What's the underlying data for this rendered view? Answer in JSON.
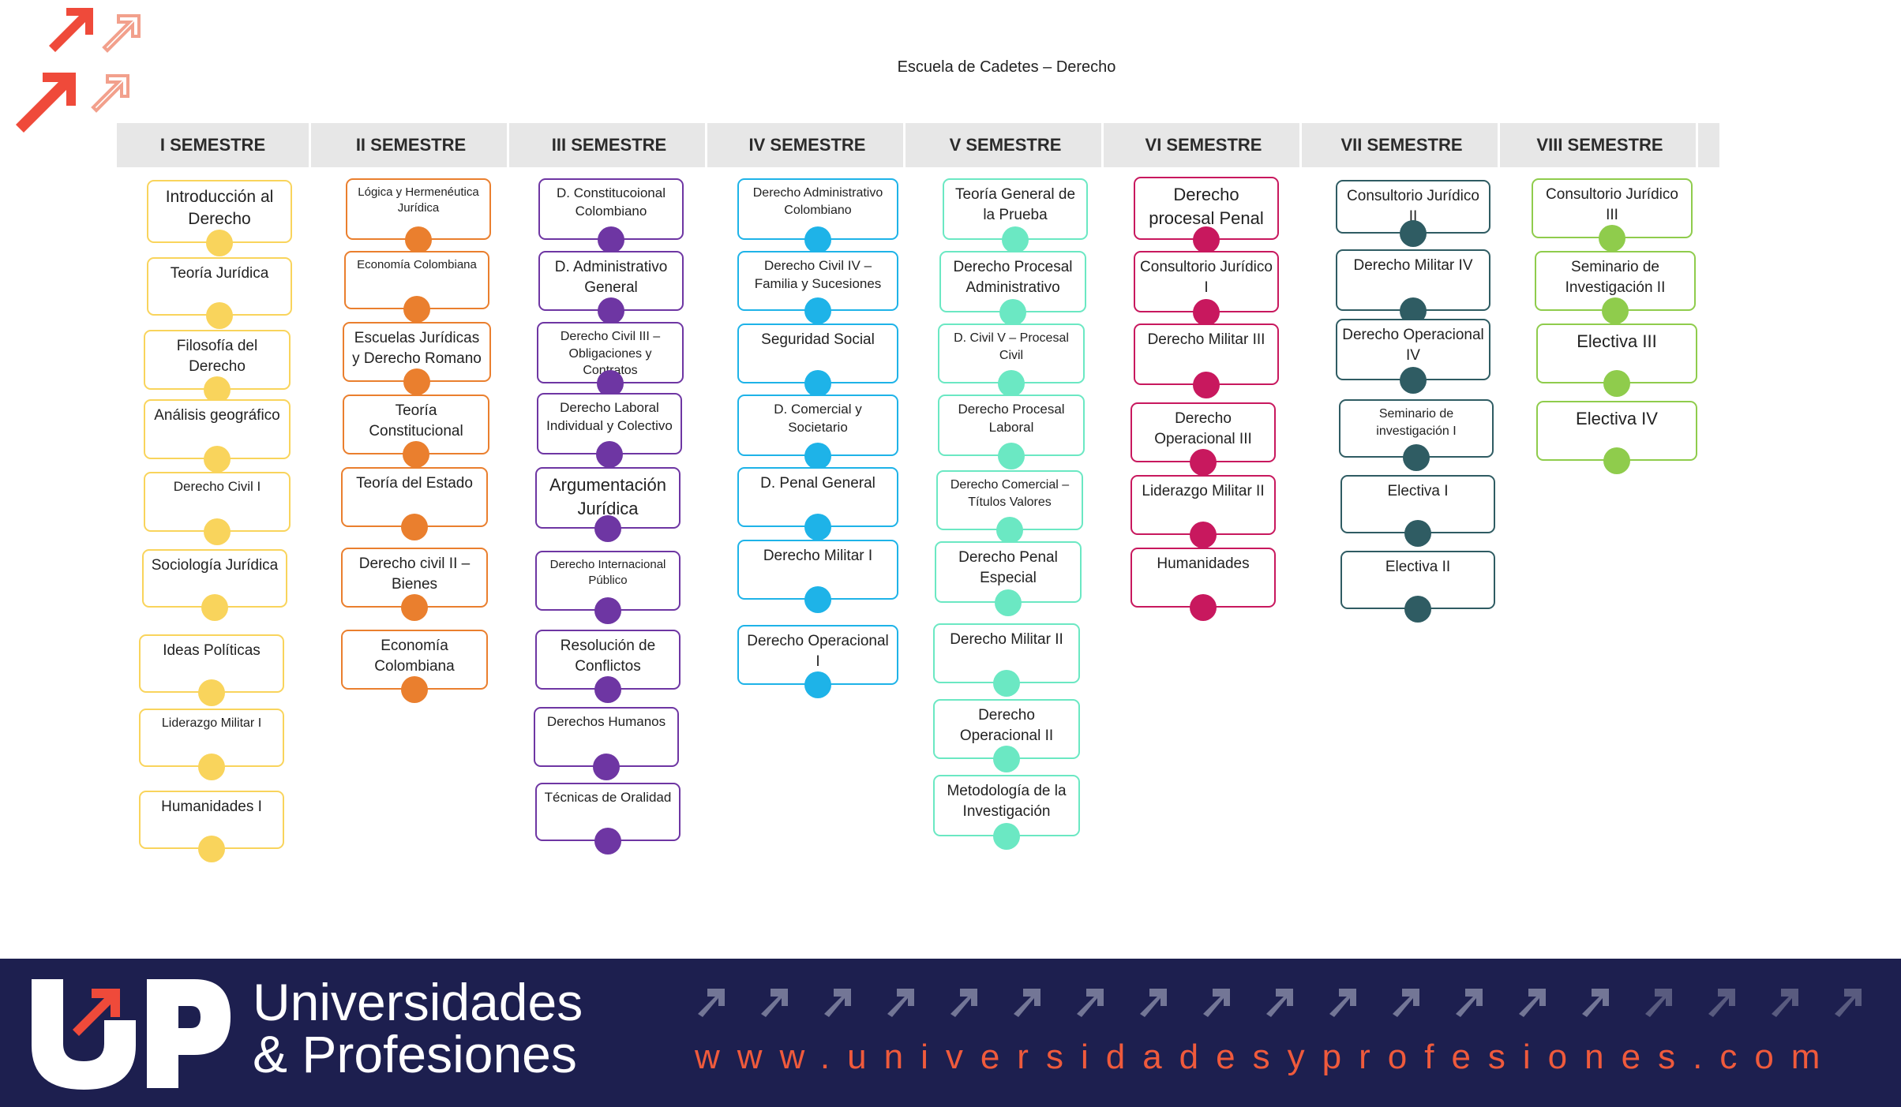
{
  "title": "Escuela de Cadetes – Derecho",
  "colors": {
    "s1": "#f9d45c",
    "s2": "#ea7f2e",
    "s3": "#6e36a3",
    "s4": "#1eb3e8",
    "s5": "#6be8c3",
    "s6": "#c8185e",
    "s7": "#2f5c63",
    "s8": "#8fcc4c",
    "footer_bg": "#1d1f4f",
    "accent": "#ef5a3c"
  },
  "semesters": [
    {
      "label": "I SEMESTRE",
      "color": "#f9d45c",
      "courses": [
        "Introducción al Derecho",
        "Teoría Jurídica",
        "Filosofía del Derecho",
        "Análisis geográfico",
        "Derecho Civil I",
        "Sociología Jurídica",
        "Ideas Políticas",
        "Liderazgo Militar I",
        "Humanidades I"
      ]
    },
    {
      "label": "II SEMESTRE",
      "color": "#ea7f2e",
      "courses": [
        "Lógica y Hermenéutica Jurídica",
        "Economía Colombiana",
        "Escuelas Jurídicas y Derecho Romano",
        "Teoría Constitucional",
        "Teoría del Estado",
        "Derecho civil II – Bienes",
        "Economía Colombiana"
      ]
    },
    {
      "label": "III SEMESTRE",
      "color": "#6e36a3",
      "courses": [
        "D. Constitucoional Colombiano",
        "D. Administrativo General",
        "Derecho Civil III – Obligaciones y Contratos",
        "Derecho Laboral Individual y Colectivo",
        "Argumentación Jurídica",
        "Derecho Internacional Público",
        "Resolución de Conflictos",
        "Derechos Humanos",
        "Técnicas de Oralidad"
      ]
    },
    {
      "label": "IV SEMESTRE",
      "color": "#1eb3e8",
      "courses": [
        "Derecho Administrativo Colombiano",
        "Derecho Civil IV – Familia y Sucesiones",
        "Seguridad Social",
        "D. Comercial y Societario",
        "D. Penal General",
        "Derecho Militar I",
        "Derecho Operacional I"
      ]
    },
    {
      "label": "V SEMESTRE",
      "color": "#6be8c3",
      "courses": [
        "Teoría General de la Prueba",
        "Derecho Procesal Administrativo",
        "D. Civil V – Procesal Civil",
        "Derecho Procesal Laboral",
        "Derecho Comercial – Títulos Valores",
        "Derecho Penal Especial",
        "Derecho Militar II",
        "Derecho Operacional II",
        "Metodología de la Investigación"
      ]
    },
    {
      "label": "VI SEMESTRE",
      "color": "#c8185e",
      "courses": [
        "Derecho procesal Penal",
        "Consultorio Jurídico I",
        "Derecho Militar III",
        "Derecho Operacional III",
        "Liderazgo Militar II",
        "Humanidades"
      ]
    },
    {
      "label": "VII SEMESTRE",
      "color": "#2f5c63",
      "courses": [
        "Consultorio Jurídico II",
        "Derecho Militar IV",
        "Derecho Operacional IV",
        "Seminario de investigación I",
        "Electiva I",
        "Electiva II"
      ]
    },
    {
      "label": "VIII SEMESTRE",
      "color": "#8fcc4c",
      "courses": [
        "Consultorio Jurídico III",
        "Seminario de Investigación II",
        "Electiva III",
        "Electiva IV"
      ]
    }
  ],
  "footer": {
    "brand_line1": "Universidades",
    "brand_line2": "& Profesiones",
    "website": "www.universidadesyprofesiones.com"
  }
}
